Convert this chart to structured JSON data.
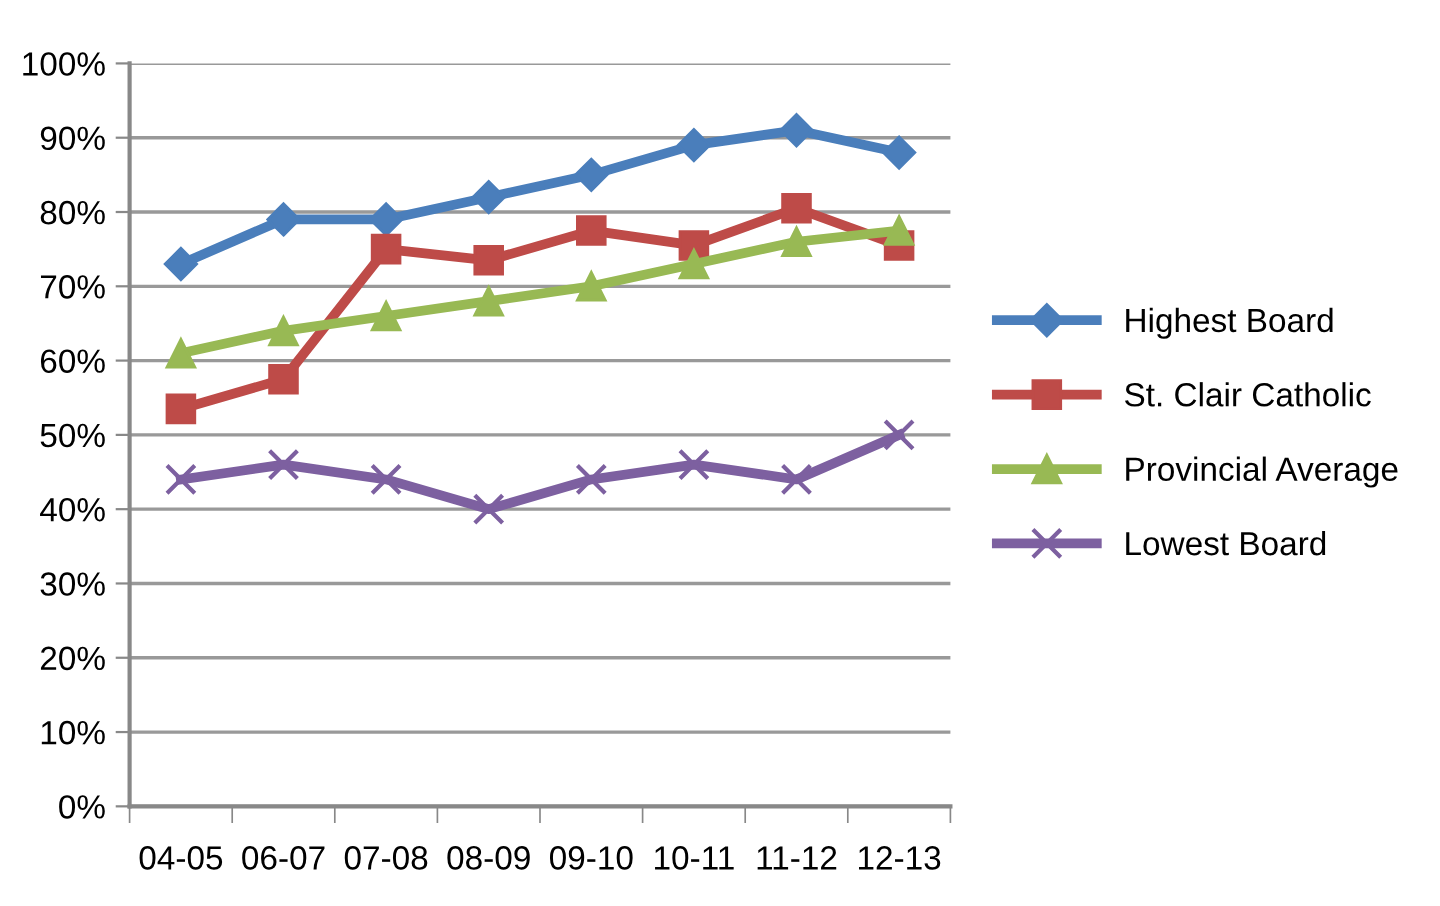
{
  "chart_data": {
    "type": "line",
    "categories": [
      "04-05",
      "06-07",
      "07-08",
      "08-09",
      "09-10",
      "10-11",
      "11-12",
      "12-13"
    ],
    "series": [
      {
        "name": "Highest Board",
        "color": "#4a7ebb",
        "marker": "diamond",
        "values": [
          73,
          79,
          79,
          82,
          85,
          89,
          91,
          88
        ]
      },
      {
        "name": "St. Clair Catholic",
        "color": "#be4b48",
        "marker": "square",
        "values": [
          53.5,
          57.5,
          75,
          73.5,
          77.5,
          75.5,
          80.5,
          75.5
        ]
      },
      {
        "name": "Provincial Average",
        "color": "#98b954",
        "marker": "triangle",
        "values": [
          61,
          64,
          66,
          68,
          70,
          73,
          76,
          77.5
        ]
      },
      {
        "name": "Lowest Board",
        "color": "#7d60a0",
        "marker": "cross",
        "values": [
          44,
          46,
          44,
          40,
          44,
          46,
          44,
          50
        ]
      }
    ],
    "ylim": [
      0,
      100
    ],
    "yticks": [
      {
        "value": 0,
        "label": "0%"
      },
      {
        "value": 10,
        "label": "10%"
      },
      {
        "value": 20,
        "label": "20%"
      },
      {
        "value": 30,
        "label": "30%"
      },
      {
        "value": 40,
        "label": "40%"
      },
      {
        "value": 50,
        "label": "50%"
      },
      {
        "value": 60,
        "label": "60%"
      },
      {
        "value": 70,
        "label": "70%"
      },
      {
        "value": 80,
        "label": "80%"
      },
      {
        "value": 90,
        "label": "90%"
      },
      {
        "value": 100,
        "label": "100%"
      }
    ],
    "grid": "y",
    "legend": "right",
    "line_style": "solid"
  }
}
